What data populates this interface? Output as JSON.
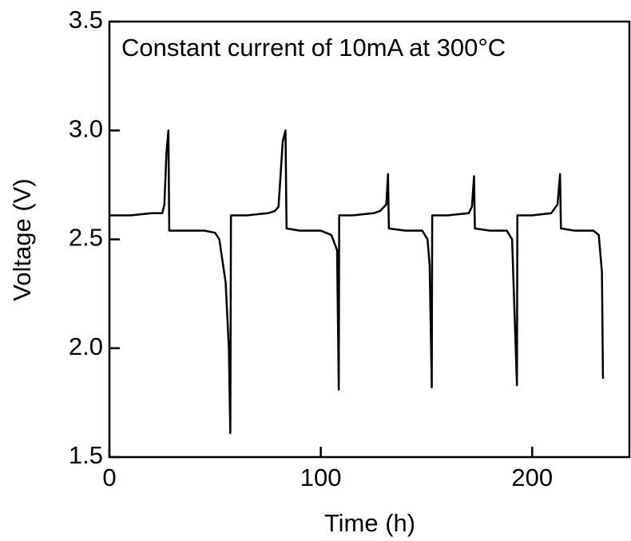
{
  "chart_data": {
    "type": "line",
    "annotation": "Constant current of 10mA at 300°C",
    "xlabel": "Time (h)",
    "ylabel": "Voltage (V)",
    "x": [
      0,
      10,
      20,
      25,
      26,
      27,
      27.9,
      28.3,
      35,
      45,
      50,
      52,
      55,
      56.5,
      57.2,
      57.5,
      65,
      75,
      78.3,
      80,
      82,
      83.3,
      83.8,
      90,
      100,
      105,
      107.7,
      108.5,
      108.7,
      115,
      125,
      128,
      131,
      131.8,
      132.2,
      140,
      148,
      150.5,
      151.5,
      152.5,
      152.7,
      160,
      170,
      171.5,
      172.5,
      172.9,
      180,
      188,
      190.5,
      192.8,
      193,
      200,
      209,
      212,
      213.2,
      213.6,
      220,
      229,
      231.5,
      233,
      233.5
    ],
    "values": [
      2.61,
      2.61,
      2.62,
      2.62,
      2.66,
      2.9,
      3.0,
      2.54,
      2.54,
      2.54,
      2.53,
      2.5,
      2.3,
      2.0,
      1.61,
      2.61,
      2.61,
      2.62,
      2.63,
      2.65,
      2.95,
      3.0,
      2.55,
      2.54,
      2.54,
      2.52,
      2.45,
      1.81,
      2.61,
      2.61,
      2.62,
      2.63,
      2.66,
      2.8,
      2.55,
      2.54,
      2.54,
      2.5,
      2.38,
      1.82,
      2.61,
      2.61,
      2.62,
      2.65,
      2.79,
      2.55,
      2.54,
      2.54,
      2.5,
      1.83,
      2.61,
      2.61,
      2.62,
      2.66,
      2.8,
      2.55,
      2.54,
      2.54,
      2.52,
      2.35,
      1.86
    ],
    "color": "#000000",
    "xlim": [
      0,
      246
    ],
    "xticks": [
      0,
      100,
      200
    ],
    "ylim": [
      1.5,
      3.5
    ],
    "yticks": [
      1.5,
      {
        "value": 2,
        "label": "2.0"
      },
      2.5,
      {
        "value": 3,
        "label": "3.0"
      },
      3.5
    ]
  }
}
